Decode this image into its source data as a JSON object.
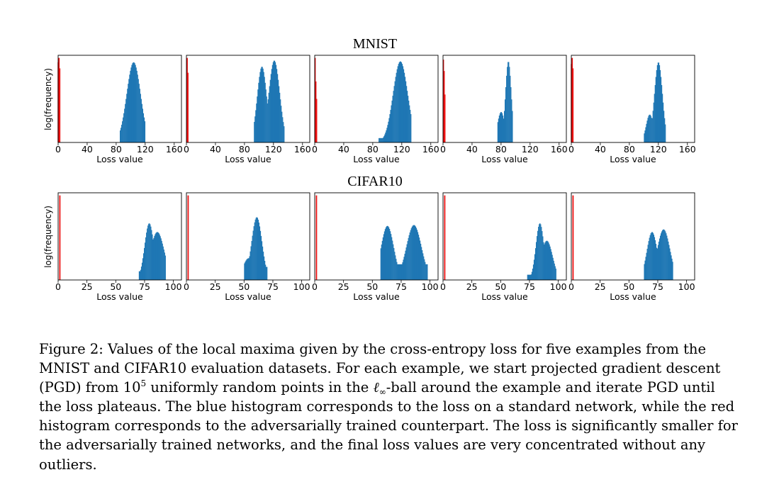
{
  "figure": {
    "rows": [
      {
        "title": "MNIST",
        "ylabel": "log(frequency)",
        "xlabel": "Loss value",
        "xlim": [
          0,
          170
        ],
        "ticks": [
          {
            "value": 0,
            "label": "0"
          },
          {
            "value": 40,
            "label": "40"
          },
          {
            "value": 80,
            "label": "80"
          },
          {
            "value": 120,
            "label": "120"
          },
          {
            "value": 160,
            "label": "160"
          }
        ],
        "panels": [
          {
            "red": [
              {
                "x": 0.2,
                "h": 0.92
              },
              {
                "x": 1.2,
                "h": 0.97
              },
              {
                "x": 2.2,
                "h": 0.85
              }
            ],
            "blue": {
              "lo": 85,
              "hi": 120,
              "peaks": [
                {
                  "c": 104,
                  "s": 9.5,
                  "a": 0.92
                }
              ],
              "tail": 0.05
            }
          },
          {
            "red": [
              {
                "x": 1.0,
                "h": 0.97
              },
              {
                "x": 2.0,
                "h": 0.8
              }
            ],
            "blue": {
              "lo": 93,
              "hi": 135,
              "peaks": [
                {
                  "c": 104,
                  "s": 6.5,
                  "a": 0.87
                },
                {
                  "c": 121,
                  "s": 7.5,
                  "a": 0.94
                }
              ],
              "tail": 0.04
            }
          },
          {
            "red": [
              {
                "x": 0.5,
                "h": 0.97
              },
              {
                "x": 1.5,
                "h": 0.7
              },
              {
                "x": 2.5,
                "h": 0.5
              }
            ],
            "blue": {
              "lo": 88,
              "hi": 133,
              "peaks": [
                {
                  "c": 118,
                  "s": 10,
                  "a": 0.93
                }
              ],
              "tail": 0.05
            }
          },
          {
            "red": [
              {
                "x": 0.5,
                "h": 0.95
              },
              {
                "x": 1.5,
                "h": 0.82
              },
              {
                "x": 2.5,
                "h": 0.55
              }
            ],
            "blue": {
              "lo": 75,
              "hi": 96,
              "peaks": [
                {
                  "c": 90,
                  "s": 4,
                  "a": 0.93
                },
                {
                  "c": 80,
                  "s": 5,
                  "a": 0.35
                }
              ],
              "tail": 0.05
            }
          },
          {
            "red": [
              {
                "x": 0.2,
                "h": 0.9
              },
              {
                "x": 1.2,
                "h": 0.97
              },
              {
                "x": 2.2,
                "h": 0.85
              }
            ],
            "blue": {
              "lo": 100,
              "hi": 130,
              "peaks": [
                {
                  "c": 120,
                  "s": 5.5,
                  "a": 0.92
                },
                {
                  "c": 108,
                  "s": 5,
                  "a": 0.32
                }
              ],
              "tail": 0.05
            }
          }
        ]
      },
      {
        "title": "CIFAR10",
        "ylabel": "log(frequency)",
        "xlabel": "Loss value",
        "xlim": [
          0,
          107
        ],
        "ticks": [
          {
            "value": 0,
            "label": "0"
          },
          {
            "value": 25,
            "label": "25"
          },
          {
            "value": 50,
            "label": "50"
          },
          {
            "value": 75,
            "label": "75"
          },
          {
            "value": 100,
            "label": "100"
          }
        ],
        "panels": [
          {
            "red": [
              {
                "x": 1.5,
                "h": 0.97
              }
            ],
            "blue": {
              "lo": 70,
              "hi": 93,
              "peaks": [
                {
                  "c": 79,
                  "s": 4,
                  "a": 0.65
                },
                {
                  "c": 86,
                  "s": 6,
                  "a": 0.55
                }
              ],
              "tail": 0.1
            }
          },
          {
            "red": [
              {
                "x": 1.5,
                "h": 0.97
              }
            ],
            "blue": {
              "lo": 50,
              "hi": 70,
              "peaks": [
                {
                  "c": 61,
                  "s": 4.5,
                  "a": 0.72
                },
                {
                  "c": 54,
                  "s": 5,
                  "a": 0.25
                }
              ],
              "tail": 0.15
            }
          },
          {
            "red": [
              {
                "x": 1.5,
                "h": 0.97
              }
            ],
            "blue": {
              "lo": 57,
              "hi": 98,
              "peaks": [
                {
                  "c": 63,
                  "s": 5.5,
                  "a": 0.62
                },
                {
                  "c": 86,
                  "s": 6.5,
                  "a": 0.63
                }
              ],
              "tail": 0.18
            }
          },
          {
            "red": [
              {
                "x": 1.5,
                "h": 0.97
              }
            ],
            "blue": {
              "lo": 73,
              "hi": 98,
              "peaks": [
                {
                  "c": 84,
                  "s": 3.5,
                  "a": 0.65
                },
                {
                  "c": 90,
                  "s": 5,
                  "a": 0.45
                }
              ],
              "tail": 0.06
            }
          },
          {
            "red": [
              {
                "x": 1.5,
                "h": 0.97
              }
            ],
            "blue": {
              "lo": 63,
              "hi": 88,
              "peaks": [
                {
                  "c": 70,
                  "s": 4.5,
                  "a": 0.55
                },
                {
                  "c": 80,
                  "s": 5.5,
                  "a": 0.58
                }
              ],
              "tail": 0.12
            }
          }
        ]
      }
    ],
    "colors": {
      "blue": "#1f77b4",
      "red": "#ee1111"
    }
  },
  "caption": {
    "part1": "Figure 2: Values of the local maxima given by the cross-entropy loss for five examples from the MNIST and CIFAR10 evaluation datasets. For each example, we start projected gradient descent (PGD) from 10",
    "exponent": "5",
    "part2": " uniformly random points in the ",
    "ell": "ℓ",
    "infty": "∞",
    "part3": "-ball around the example and iterate PGD until the loss plateaus. The blue histogram corresponds to the loss on a standard network, while the red histogram corresponds to the adversarially trained counterpart. The loss is significantly smaller for the adversarially trained networks, and the final loss values are very concentrated without any outliers."
  }
}
